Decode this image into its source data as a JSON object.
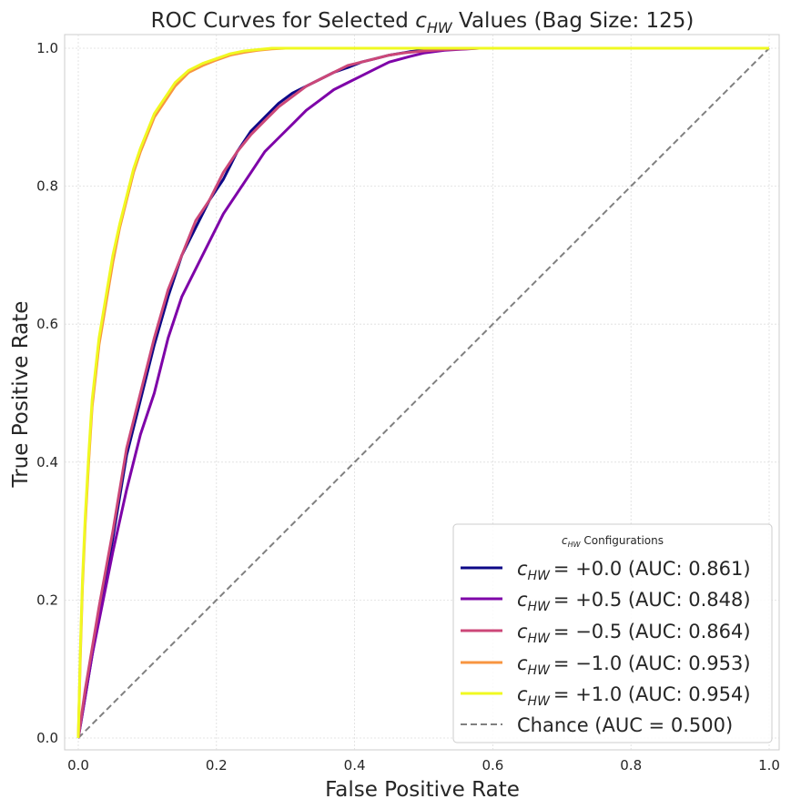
{
  "chart_data": {
    "type": "line",
    "title": "ROC Curves for Selected c_HW Values (Bag Size: 125)",
    "title_parts": {
      "prefix": "ROC Curves for Selected ",
      "symbol": "c",
      "subscript": "HW",
      "suffix": " Values (Bag Size: 125)"
    },
    "xlabel": "False Positive Rate",
    "ylabel": "True Positive Rate",
    "xlim": [
      -0.02,
      1.02
    ],
    "ylim": [
      -0.02,
      1.02
    ],
    "x_ticks": [
      0.0,
      0.2,
      0.4,
      0.6,
      0.8,
      1.0
    ],
    "x_tick_labels": [
      "0.0",
      "0.2",
      "0.4",
      "0.6",
      "0.8",
      "1.0"
    ],
    "y_ticks": [
      0.0,
      0.2,
      0.4,
      0.6,
      0.8,
      1.0
    ],
    "y_tick_labels": [
      "0.0",
      "0.2",
      "0.4",
      "0.6",
      "0.8",
      "1.0"
    ],
    "grid": true,
    "legend": {
      "position": "lower-right",
      "title_symbol": "c",
      "title_subscript": "HW",
      "title_suffix": " Configurations"
    },
    "series": [
      {
        "name": "c_HW = +0.0 (AUC: 0.861)",
        "value_label": "= +0.0 (AUC: 0.861)",
        "color": "#0d0887",
        "x": [
          0,
          0.005,
          0.01,
          0.02,
          0.03,
          0.05,
          0.07,
          0.09,
          0.11,
          0.13,
          0.15,
          0.17,
          0.19,
          0.21,
          0.23,
          0.25,
          0.27,
          0.29,
          0.31,
          0.33,
          0.35,
          0.37,
          0.39,
          0.41,
          0.43,
          0.45,
          0.48,
          0.51,
          0.55,
          0.6,
          1.0
        ],
        "y": [
          0,
          0.03,
          0.06,
          0.12,
          0.18,
          0.29,
          0.41,
          0.49,
          0.57,
          0.64,
          0.7,
          0.74,
          0.78,
          0.81,
          0.85,
          0.88,
          0.9,
          0.92,
          0.935,
          0.945,
          0.955,
          0.965,
          0.972,
          0.98,
          0.985,
          0.99,
          0.995,
          0.998,
          1.0,
          1.0,
          1.0
        ]
      },
      {
        "name": "c_HW = +0.5 (AUC: 0.848)",
        "value_label": "= +0.5 (AUC: 0.848)",
        "color": "#7e03a8",
        "x": [
          0,
          0.005,
          0.01,
          0.02,
          0.03,
          0.05,
          0.07,
          0.09,
          0.11,
          0.13,
          0.15,
          0.17,
          0.19,
          0.21,
          0.23,
          0.25,
          0.27,
          0.29,
          0.31,
          0.33,
          0.35,
          0.37,
          0.39,
          0.41,
          0.43,
          0.45,
          0.48,
          0.5,
          0.53,
          0.58,
          1.0
        ],
        "y": [
          0,
          0.03,
          0.06,
          0.12,
          0.17,
          0.27,
          0.36,
          0.44,
          0.5,
          0.58,
          0.64,
          0.68,
          0.72,
          0.76,
          0.79,
          0.82,
          0.85,
          0.87,
          0.89,
          0.91,
          0.925,
          0.94,
          0.95,
          0.96,
          0.97,
          0.98,
          0.988,
          0.993,
          0.997,
          1.0,
          1.0
        ]
      },
      {
        "name": "c_HW = −0.5 (AUC: 0.864)",
        "value_label": "= −0.5 (AUC: 0.864)",
        "color": "#cc4778",
        "x": [
          0,
          0.005,
          0.01,
          0.02,
          0.03,
          0.05,
          0.07,
          0.09,
          0.11,
          0.13,
          0.15,
          0.17,
          0.19,
          0.21,
          0.23,
          0.25,
          0.27,
          0.29,
          0.31,
          0.33,
          0.35,
          0.37,
          0.39,
          0.41,
          0.43,
          0.45,
          0.47,
          0.5,
          0.53,
          0.58,
          1.0
        ],
        "y": [
          0,
          0.035,
          0.07,
          0.13,
          0.19,
          0.3,
          0.42,
          0.5,
          0.58,
          0.65,
          0.7,
          0.75,
          0.78,
          0.82,
          0.85,
          0.875,
          0.895,
          0.915,
          0.93,
          0.945,
          0.955,
          0.965,
          0.975,
          0.98,
          0.985,
          0.99,
          0.993,
          0.996,
          0.998,
          1.0,
          1.0
        ]
      },
      {
        "name": "c_HW = −1.0 (AUC: 0.953)",
        "value_label": "= −1.0 (AUC: 0.953)",
        "color": "#f89540",
        "x": [
          0,
          0.003,
          0.006,
          0.01,
          0.015,
          0.02,
          0.03,
          0.04,
          0.05,
          0.06,
          0.07,
          0.08,
          0.09,
          0.1,
          0.11,
          0.12,
          0.13,
          0.14,
          0.16,
          0.18,
          0.2,
          0.22,
          0.24,
          0.26,
          0.28,
          0.3,
          0.33,
          1.0
        ],
        "y": [
          0,
          0.12,
          0.22,
          0.31,
          0.4,
          0.48,
          0.57,
          0.63,
          0.69,
          0.74,
          0.78,
          0.82,
          0.85,
          0.875,
          0.9,
          0.915,
          0.93,
          0.945,
          0.965,
          0.975,
          0.983,
          0.99,
          0.994,
          0.997,
          0.999,
          1.0,
          1.0,
          1.0
        ]
      },
      {
        "name": "c_HW = +1.0 (AUC: 0.954)",
        "value_label": "= +1.0 (AUC: 0.954)",
        "color": "#f0f921",
        "x": [
          0,
          0.003,
          0.006,
          0.01,
          0.015,
          0.02,
          0.03,
          0.04,
          0.05,
          0.06,
          0.07,
          0.08,
          0.09,
          0.1,
          0.11,
          0.12,
          0.13,
          0.14,
          0.16,
          0.18,
          0.2,
          0.22,
          0.24,
          0.26,
          0.28,
          0.3,
          0.33,
          1.0
        ],
        "y": [
          0,
          0.13,
          0.23,
          0.32,
          0.41,
          0.49,
          0.58,
          0.64,
          0.7,
          0.745,
          0.785,
          0.825,
          0.855,
          0.88,
          0.905,
          0.92,
          0.935,
          0.95,
          0.968,
          0.978,
          0.985,
          0.992,
          0.996,
          0.998,
          1.0,
          1.0,
          1.0,
          1.0
        ]
      },
      {
        "name": "Chance (AUC = 0.500)",
        "value_label": "Chance (AUC = 0.500)",
        "color": "#808080",
        "dashed": true,
        "x": [
          0,
          1
        ],
        "y": [
          0,
          1
        ]
      }
    ]
  }
}
